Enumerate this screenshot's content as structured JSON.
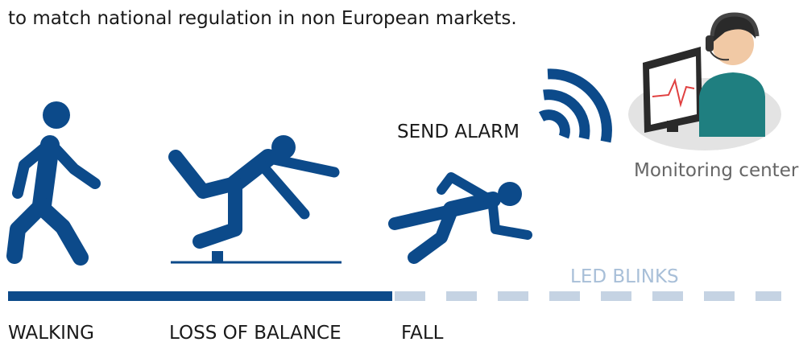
{
  "intro_text": "to match national regulation in non European markets.",
  "stages": [
    {
      "label": "WALKING"
    },
    {
      "label": "LOSS OF BALANCE"
    },
    {
      "label": "FALL"
    }
  ],
  "send_alarm_label": "SEND ALARM",
  "monitoring_center_label": "Monitoring center",
  "led_blinks_label": "LED BLINKS"
}
